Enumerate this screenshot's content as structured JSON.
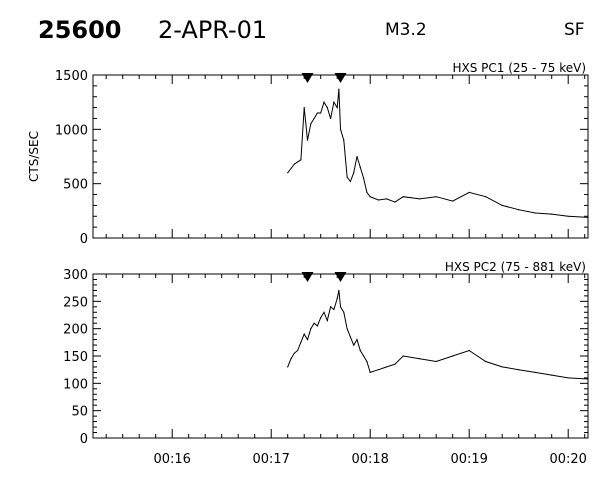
{
  "header": {
    "event_number": "25600",
    "date": "2-APR-01",
    "goes_class": "M3.2",
    "flag": "SF"
  },
  "chart_data": [
    {
      "type": "line",
      "title": "HXS PC1 (25 - 75 keV)",
      "ylabel": "CTS/SEC",
      "xlabel": "",
      "ylim": [
        0,
        1500
      ],
      "yticks": [
        0,
        500,
        1000,
        1500
      ],
      "xlim": [
        "00:15:12",
        "00:20:12"
      ],
      "xticks": [
        "00:16",
        "00:17",
        "00:18",
        "00:19",
        "00:20"
      ],
      "markers": [
        "00:17:22",
        "00:17:42"
      ],
      "series": [
        {
          "x": [
            "00:17:10",
            "00:17:12",
            "00:17:14",
            "00:17:16",
            "00:17:18",
            "00:17:20",
            "00:17:22",
            "00:17:24",
            "00:17:26",
            "00:17:28",
            "00:17:30",
            "00:17:32",
            "00:17:34",
            "00:17:36",
            "00:17:38",
            "00:17:40",
            "00:17:41",
            "00:17:42",
            "00:17:44",
            "00:17:46",
            "00:17:48",
            "00:17:50",
            "00:17:52",
            "00:17:54",
            "00:17:56",
            "00:17:58",
            "00:18:00",
            "00:18:05",
            "00:18:10",
            "00:18:15",
            "00:18:20",
            "00:18:30",
            "00:18:40",
            "00:18:50",
            "00:19:00",
            "00:19:10",
            "00:19:20",
            "00:19:30",
            "00:19:40",
            "00:19:50",
            "00:20:00",
            "00:20:12"
          ],
          "values": [
            600,
            640,
            680,
            700,
            720,
            1200,
            900,
            1050,
            1100,
            1150,
            1150,
            1250,
            1200,
            1100,
            1250,
            1200,
            1370,
            1000,
            900,
            560,
            520,
            600,
            750,
            650,
            550,
            420,
            380,
            350,
            360,
            330,
            380,
            360,
            380,
            340,
            420,
            380,
            300,
            260,
            230,
            220,
            200,
            190
          ]
        }
      ]
    },
    {
      "type": "line",
      "title": "HXS PC2 (75 - 881 keV)",
      "ylabel": "",
      "xlabel": "",
      "ylim": [
        0,
        300
      ],
      "yticks": [
        0,
        50,
        100,
        150,
        200,
        250,
        300
      ],
      "xlim": [
        "00:15:12",
        "00:20:12"
      ],
      "xticks": [
        "00:16",
        "00:17",
        "00:18",
        "00:19",
        "00:20"
      ],
      "markers": [
        "00:17:22",
        "00:17:42"
      ],
      "series": [
        {
          "x": [
            "00:17:10",
            "00:17:12",
            "00:17:14",
            "00:17:16",
            "00:17:18",
            "00:17:20",
            "00:17:22",
            "00:17:24",
            "00:17:26",
            "00:17:28",
            "00:17:30",
            "00:17:32",
            "00:17:34",
            "00:17:36",
            "00:17:38",
            "00:17:40",
            "00:17:41",
            "00:17:42",
            "00:17:44",
            "00:17:46",
            "00:17:48",
            "00:17:50",
            "00:17:52",
            "00:17:54",
            "00:17:56",
            "00:17:58",
            "00:18:00",
            "00:18:05",
            "00:18:10",
            "00:18:15",
            "00:18:20",
            "00:18:30",
            "00:18:40",
            "00:18:50",
            "00:19:00",
            "00:19:10",
            "00:19:20",
            "00:19:30",
            "00:19:40",
            "00:19:50",
            "00:20:00",
            "00:20:12"
          ],
          "values": [
            130,
            145,
            155,
            160,
            175,
            190,
            180,
            200,
            210,
            205,
            220,
            230,
            215,
            240,
            235,
            255,
            270,
            240,
            230,
            200,
            185,
            170,
            180,
            160,
            150,
            140,
            120,
            125,
            130,
            135,
            150,
            145,
            140,
            150,
            160,
            140,
            130,
            125,
            120,
            115,
            110,
            108
          ]
        }
      ]
    }
  ]
}
